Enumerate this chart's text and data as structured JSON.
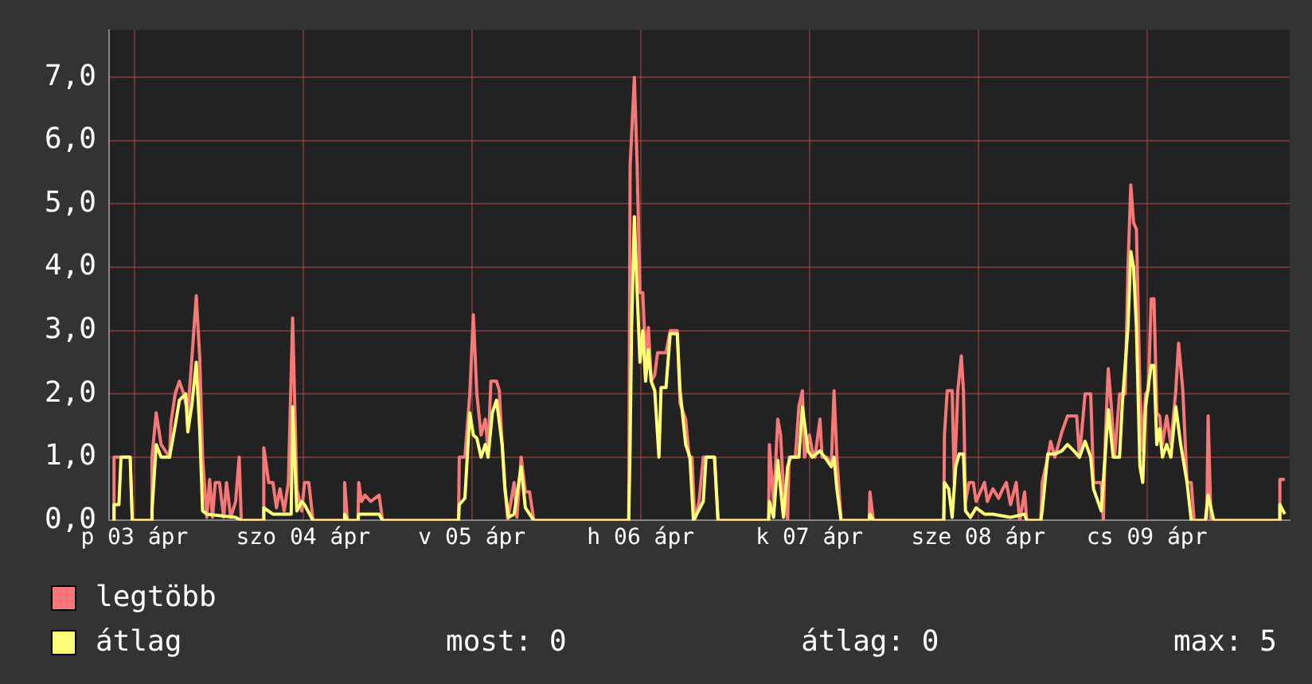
{
  "chart_data": {
    "type": "line",
    "xlim": [
      "--04-03T08:24",
      "--04-10T08:18"
    ],
    "ylim": [
      0,
      7.75
    ],
    "xticks": [
      {
        "value": "--04-03T12:00",
        "label": "p 03 ápr"
      },
      {
        "value": "--04-04T12:00",
        "label": "szo 04 ápr"
      },
      {
        "value": "--04-05T12:00",
        "label": "v 05 ápr"
      },
      {
        "value": "--04-06T12:00",
        "label": "h 06 ápr"
      },
      {
        "value": "--04-07T12:00",
        "label": "k 07 ápr"
      },
      {
        "value": "--04-08T12:00",
        "label": "sze 08 ápr"
      },
      {
        "value": "--04-09T12:00",
        "label": "cs 09 ápr"
      }
    ],
    "yticks": [
      {
        "value": 0,
        "label": "0,0"
      },
      {
        "value": 1,
        "label": "1,0"
      },
      {
        "value": 2,
        "label": "2,0"
      },
      {
        "value": 3,
        "label": "3,0"
      },
      {
        "value": 4,
        "label": "4,0"
      },
      {
        "value": 5,
        "label": "5,0"
      },
      {
        "value": 6,
        "label": "6,0"
      },
      {
        "value": 7,
        "label": "7,0"
      }
    ],
    "grid": true,
    "legend": "bottom left",
    "marker": "none",
    "line_style": "solid",
    "annotations": [
      "most: 0",
      "átlag: 0",
      "max: 5"
    ],
    "series": [
      {
        "name": "legtöbb",
        "color": "#f87878",
        "x": [
          "--04-03T09:00",
          "--04-03T09:06",
          "--04-03T10:12",
          "--04-03T11:24",
          "--04-03T11:42",
          "--04-03T14:24",
          "--04-03T14:30",
          "--04-03T15:06",
          "--04-03T15:48",
          "--04-03T17:00",
          "--04-03T17:12",
          "--04-03T17:48",
          "--04-03T18:24",
          "--04-03T19:00",
          "--04-03T19:36",
          "--04-03T20:12",
          "--04-03T20:48",
          "--04-03T21:18",
          "--04-03T21:42",
          "--04-03T22:18",
          "--04-03T22:42",
          "--04-03T23:06",
          "--04-03T23:30",
          "--04-04T00:06",
          "--04-04T00:42",
          "--04-04T01:06",
          "--04-04T01:42",
          "--04-04T02:24",
          "--04-04T02:54",
          "--04-04T03:12",
          "--04-04T06:18",
          "--04-04T06:24",
          "--04-04T07:06",
          "--04-04T07:42",
          "--04-04T08:12",
          "--04-04T08:42",
          "--04-04T09:18",
          "--04-04T09:54",
          "--04-04T10:30",
          "--04-04T11:06",
          "--04-04T11:48",
          "--04-04T12:12",
          "--04-04T12:48",
          "--04-04T13:24",
          "--04-04T17:48",
          "--04-04T17:54",
          "--04-04T18:18",
          "--04-04T19:48",
          "--04-04T19:54",
          "--04-04T20:18",
          "--04-04T20:48",
          "--04-04T21:36",
          "--04-04T22:48",
          "--04-04T23:18",
          "--04-05T10:06",
          "--04-05T10:12",
          "--04-05T11:00",
          "--04-05T11:42",
          "--04-05T12:12",
          "--04-05T12:42",
          "--04-05T13:18",
          "--04-05T13:54",
          "--04-05T14:18",
          "--04-05T14:42",
          "--04-05T15:30",
          "--04-05T15:54",
          "--04-05T16:18",
          "--04-05T16:42",
          "--04-05T17:06",
          "--04-05T18:00",
          "--04-05T18:24",
          "--04-05T19:00",
          "--04-05T19:36",
          "--04-05T20:12",
          "--04-05T20:48",
          "--04-06T10:18",
          "--04-06T10:30",
          "--04-06T11:06",
          "--04-06T11:30",
          "--04-06T11:54",
          "--04-06T12:18",
          "--04-06T12:42",
          "--04-06T13:06",
          "--04-06T13:30",
          "--04-06T14:00",
          "--04-06T14:24",
          "--04-06T15:36",
          "--04-06T16:12",
          "--04-06T17:12",
          "--04-06T17:36",
          "--04-06T18:24",
          "--04-06T18:54",
          "--04-06T19:18",
          "--04-06T19:42",
          "--04-06T20:18",
          "--04-06T20:54",
          "--04-06T22:30",
          "--04-06T23:00",
          "--04-07T06:12",
          "--04-07T06:18",
          "--04-07T06:54",
          "--04-07T07:30",
          "--04-07T07:54",
          "--04-07T08:18",
          "--04-07T08:54",
          "--04-07T09:06",
          "--04-07T10:00",
          "--04-07T10:30",
          "--04-07T11:00",
          "--04-07T11:18",
          "--04-07T12:00",
          "--04-07T12:24",
          "--04-07T12:48",
          "--04-07T13:30",
          "--04-07T13:48",
          "--04-07T14:30",
          "--04-07T15:06",
          "--04-07T15:30",
          "--04-07T15:54",
          "--04-07T16:30",
          "--04-07T20:30",
          "--04-07T20:36",
          "--04-07T21:06",
          "--04-08T07:06",
          "--04-08T07:12",
          "--04-08T07:36",
          "--04-08T08:18",
          "--04-08T08:36",
          "--04-08T09:06",
          "--04-08T09:36",
          "--04-08T09:54",
          "--04-08T10:12",
          "--04-08T10:42",
          "--04-08T11:18",
          "--04-08T11:42",
          "--04-08T12:54",
          "--04-08T13:18",
          "--04-08T14:06",
          "--04-08T14:54",
          "--04-08T15:30",
          "--04-08T16:00",
          "--04-08T16:36",
          "--04-08T17:24",
          "--04-08T17:54",
          "--04-08T18:36",
          "--04-08T18:54",
          "--04-08T20:54",
          "--04-08T21:06",
          "--04-08T21:54",
          "--04-08T22:18",
          "--04-08T22:54",
          "--04-08T23:54",
          "--04-09T00:42",
          "--04-09T02:00",
          "--04-09T02:24",
          "--04-09T03:12",
          "--04-09T04:00",
          "--04-09T04:24",
          "--04-09T05:30",
          "--04-09T05:48",
          "--04-09T06:06",
          "--04-09T06:30",
          "--04-09T06:54",
          "--04-09T07:24",
          "--04-09T08:06",
          "--04-09T08:54",
          "--04-09T09:18",
          "--04-09T09:42",
          "--04-09T10:06",
          "--04-09T10:30",
          "--04-09T11:00",
          "--04-09T11:24",
          "--04-09T11:48",
          "--04-09T12:12",
          "--04-09T12:36",
          "--04-09T13:00",
          "--04-09T13:24",
          "--04-09T13:48",
          "--04-09T14:12",
          "--04-09T14:48",
          "--04-09T15:24",
          "--04-09T16:06",
          "--04-09T16:30",
          "--04-09T17:06",
          "--04-09T17:42",
          "--04-09T18:18",
          "--04-09T18:42",
          "--04-09T20:30",
          "--04-09T20:42",
          "--04-09T21:06",
          "--04-10T06:48",
          "--04-10T06:54",
          "--04-10T07:36"
        ],
        "values": [
          0,
          1.0,
          1.0,
          1.0,
          0,
          0,
          1.0,
          1.7,
          1.2,
          1.0,
          1.55,
          2.0,
          2.2,
          2.0,
          1.7,
          2.6,
          3.55,
          2.55,
          1.0,
          0.05,
          0.65,
          0.05,
          0.6,
          0.6,
          0.05,
          0.6,
          0.05,
          0.3,
          1.0,
          0,
          0,
          1.15,
          0.6,
          0.6,
          0.2,
          0.5,
          0.15,
          0.6,
          3.2,
          0.5,
          0.15,
          0.6,
          0.6,
          0,
          0,
          0.6,
          0,
          0,
          0.6,
          0.3,
          0.4,
          0.3,
          0.4,
          0,
          0,
          1.0,
          1.0,
          2.0,
          3.25,
          2.0,
          1.35,
          1.6,
          1.1,
          2.2,
          2.2,
          2.05,
          1.2,
          0.5,
          0,
          0.6,
          0.05,
          1.0,
          0.45,
          0.45,
          0,
          0,
          5.6,
          7.0,
          5.6,
          3.6,
          3.6,
          2.55,
          3.05,
          2.2,
          2.3,
          2.65,
          2.65,
          3.0,
          3.0,
          1.85,
          1.6,
          1.0,
          1.0,
          0,
          0.3,
          1.0,
          1.0,
          0,
          0,
          1.2,
          0.25,
          1.6,
          1.35,
          0.5,
          0,
          1.0,
          1.0,
          1.8,
          2.05,
          1.0,
          1.35,
          1.1,
          1.0,
          1.6,
          1.0,
          1.0,
          0.85,
          2.05,
          1.0,
          0,
          0,
          0.45,
          0,
          0,
          1.35,
          2.05,
          2.05,
          0.6,
          2.05,
          2.6,
          2.05,
          0.3,
          0.6,
          0.6,
          0.3,
          0.6,
          0.3,
          0.5,
          0.35,
          0.5,
          0.6,
          0.25,
          0.6,
          0,
          0.45,
          0,
          0,
          0.6,
          1.0,
          1.25,
          1.0,
          1.4,
          1.65,
          1.65,
          1.0,
          2.0,
          2.0,
          0.6,
          0.6,
          0,
          1.35,
          2.4,
          1.85,
          1.0,
          2.0,
          2.0,
          4.0,
          5.3,
          4.7,
          4.6,
          2.05,
          1.1,
          2.0,
          2.05,
          3.5,
          3.5,
          1.7,
          1.65,
          1.2,
          1.65,
          1.2,
          2.05,
          2.8,
          2.05,
          0.6,
          0.6,
          0,
          0,
          1.65,
          0,
          0,
          0.65,
          0.65
        ]
      },
      {
        "name": "átlag",
        "color": "#ffff78",
        "x": [
          "--04-03T09:00",
          "--04-03T09:06",
          "--04-03T09:48",
          "--04-03T10:06",
          "--04-03T11:24",
          "--04-03T11:42",
          "--04-03T14:24",
          "--04-03T14:30",
          "--04-03T15:06",
          "--04-03T15:48",
          "--04-03T17:00",
          "--04-03T17:48",
          "--04-03T18:24",
          "--04-03T19:18",
          "--04-03T19:36",
          "--04-03T20:12",
          "--04-03T20:48",
          "--04-03T21:18",
          "--04-03T21:42",
          "--04-03T22:18",
          "--04-04T02:24",
          "--04-04T03:12",
          "--04-04T06:18",
          "--04-04T06:24",
          "--04-04T07:42",
          "--04-04T10:18",
          "--04-04T10:30",
          "--04-04T11:06",
          "--04-04T11:48",
          "--04-04T12:12",
          "--04-04T13:24",
          "--04-04T17:48",
          "--04-04T17:54",
          "--04-04T18:18",
          "--04-04T19:48",
          "--04-04T19:54",
          "--04-04T22:48",
          "--04-04T23:18",
          "--04-05T10:06",
          "--04-05T10:12",
          "--04-05T11:00",
          "--04-05T11:42",
          "--04-05T12:12",
          "--04-05T12:42",
          "--04-05T13:18",
          "--04-05T13:54",
          "--04-05T14:18",
          "--04-05T14:54",
          "--04-05T15:30",
          "--04-05T16:18",
          "--04-05T16:42",
          "--04-05T17:12",
          "--04-05T18:00",
          "--04-05T19:00",
          "--04-05T19:36",
          "--04-05T20:48",
          "--04-06T10:18",
          "--04-06T10:30",
          "--04-06T10:42",
          "--04-06T11:06",
          "--04-06T11:30",
          "--04-06T11:54",
          "--04-06T12:18",
          "--04-06T12:42",
          "--04-06T13:06",
          "--04-06T13:30",
          "--04-06T14:00",
          "--04-06T14:36",
          "--04-06T14:54",
          "--04-06T15:36",
          "--04-06T16:12",
          "--04-06T17:12",
          "--04-06T17:36",
          "--04-06T18:24",
          "--04-06T19:00",
          "--04-06T19:30",
          "--04-06T20:54",
          "--04-06T21:18",
          "--04-06T22:30",
          "--04-06T23:00",
          "--04-07T06:12",
          "--04-07T06:18",
          "--04-07T06:54",
          "--04-07T07:30",
          "--04-07T07:54",
          "--04-07T08:18",
          "--04-07T08:54",
          "--04-07T09:18",
          "--04-07T10:30",
          "--04-07T11:00",
          "--04-07T11:48",
          "--04-07T12:24",
          "--04-07T13:30",
          "--04-07T14:30",
          "--04-07T15:06",
          "--04-07T15:30",
          "--04-07T15:54",
          "--04-07T16:30",
          "--04-07T20:30",
          "--04-07T20:36",
          "--04-07T21:06",
          "--04-08T07:06",
          "--04-08T07:12",
          "--04-08T07:48",
          "--04-08T08:18",
          "--04-08T08:48",
          "--04-08T09:18",
          "--04-08T09:54",
          "--04-08T10:12",
          "--04-08T10:54",
          "--04-08T11:42",
          "--04-08T12:54",
          "--04-08T14:06",
          "--04-08T16:36",
          "--04-08T18:36",
          "--04-08T18:54",
          "--04-08T20:54",
          "--04-08T21:06",
          "--04-08T21:54",
          "--04-08T22:54",
          "--04-08T23:54",
          "--04-09T00:42",
          "--04-09T01:36",
          "--04-09T02:24",
          "--04-09T03:12",
          "--04-09T04:00",
          "--04-09T04:24",
          "--04-09T05:30",
          "--04-09T06:06",
          "--04-09T06:30",
          "--04-09T07:12",
          "--04-09T08:06",
          "--04-09T08:30",
          "--04-09T09:18",
          "--04-09T09:42",
          "--04-09T10:06",
          "--04-09T10:30",
          "--04-09T11:00",
          "--04-09T11:24",
          "--04-09T11:48",
          "--04-09T12:36",
          "--04-09T13:00",
          "--04-09T13:24",
          "--04-09T13:48",
          "--04-09T14:12",
          "--04-09T14:48",
          "--04-09T15:24",
          "--04-09T16:06",
          "--04-09T16:48",
          "--04-09T17:42",
          "--04-09T18:18",
          "--04-09T20:18",
          "--04-09T20:42",
          "--04-09T21:30",
          "--04-10T06:48",
          "--04-10T06:54",
          "--04-10T07:36"
        ],
        "values": [
          0,
          0.25,
          0.25,
          1.0,
          1.0,
          0,
          0,
          0.15,
          1.2,
          1.0,
          1.0,
          1.5,
          1.9,
          2.0,
          1.4,
          1.85,
          2.5,
          1.4,
          0.15,
          0.1,
          0.05,
          0,
          0,
          0.2,
          0.1,
          0.1,
          1.8,
          0.15,
          0.3,
          0.25,
          0,
          0,
          0.1,
          0,
          0,
          0.1,
          0.1,
          0,
          0,
          0.25,
          0.35,
          1.7,
          1.35,
          1.3,
          1.0,
          1.2,
          1.0,
          1.7,
          1.9,
          1.2,
          0.5,
          0.05,
          0.1,
          0.85,
          0.2,
          0,
          0,
          1.2,
          3.0,
          4.8,
          3.6,
          2.5,
          3.0,
          2.2,
          2.7,
          2.2,
          2.05,
          1.0,
          2.1,
          2.1,
          2.95,
          2.95,
          2.05,
          1.2,
          1.0,
          0,
          0.3,
          1.0,
          1.0,
          0,
          0,
          0.3,
          0.05,
          0.95,
          0.5,
          0.05,
          0.85,
          1.0,
          1.0,
          1.8,
          1.1,
          1.0,
          1.1,
          0.95,
          0.85,
          1.0,
          0.5,
          0,
          0,
          0.1,
          0,
          0,
          0.6,
          0.5,
          0.05,
          0.85,
          1.05,
          1.05,
          0.15,
          0.05,
          0.2,
          0.1,
          0.1,
          0.05,
          0.1,
          0,
          0,
          0.15,
          1.05,
          1.05,
          1.1,
          1.2,
          1.1,
          1.0,
          1.25,
          1.0,
          0.5,
          0.15,
          1.1,
          1.75,
          1.0,
          1.0,
          1.85,
          3.05,
          4.25,
          4.0,
          3.05,
          0.85,
          0.6,
          1.8,
          2.45,
          2.45,
          1.2,
          1.45,
          1.0,
          1.2,
          1.0,
          1.8,
          1.2,
          0.6,
          0,
          0,
          0.4,
          0,
          0,
          0.25,
          0.1
        ]
      }
    ]
  }
}
